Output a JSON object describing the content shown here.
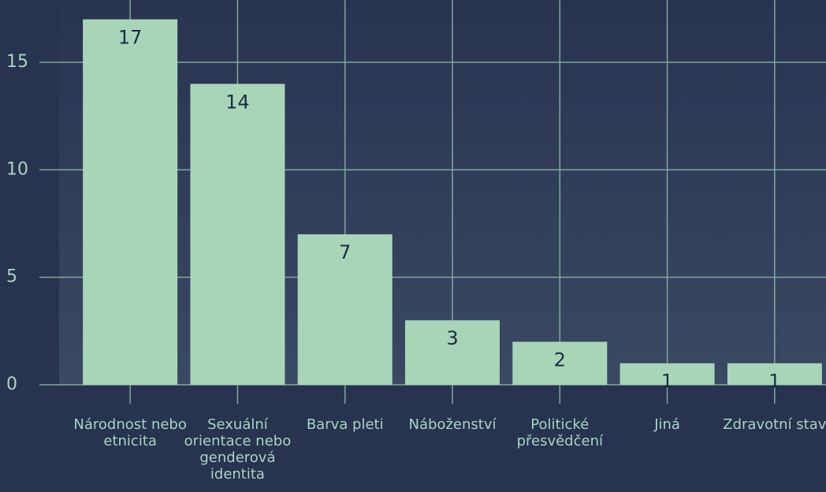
{
  "chart_data": {
    "type": "bar",
    "categories": [
      "Národnost nebo etnicita",
      "Sexuální orientace nebo genderová identita",
      "Barva pleti",
      "Náboženství",
      "Politické přesvědčení",
      "Jiná",
      "Zdravotní stav"
    ],
    "values": [
      17,
      14,
      7,
      3,
      2,
      1,
      1
    ],
    "color": "#a8d5b8",
    "ylim": [
      0,
      17.9
    ],
    "yticks": [
      0,
      5,
      10,
      15
    ],
    "grid": true
  }
}
